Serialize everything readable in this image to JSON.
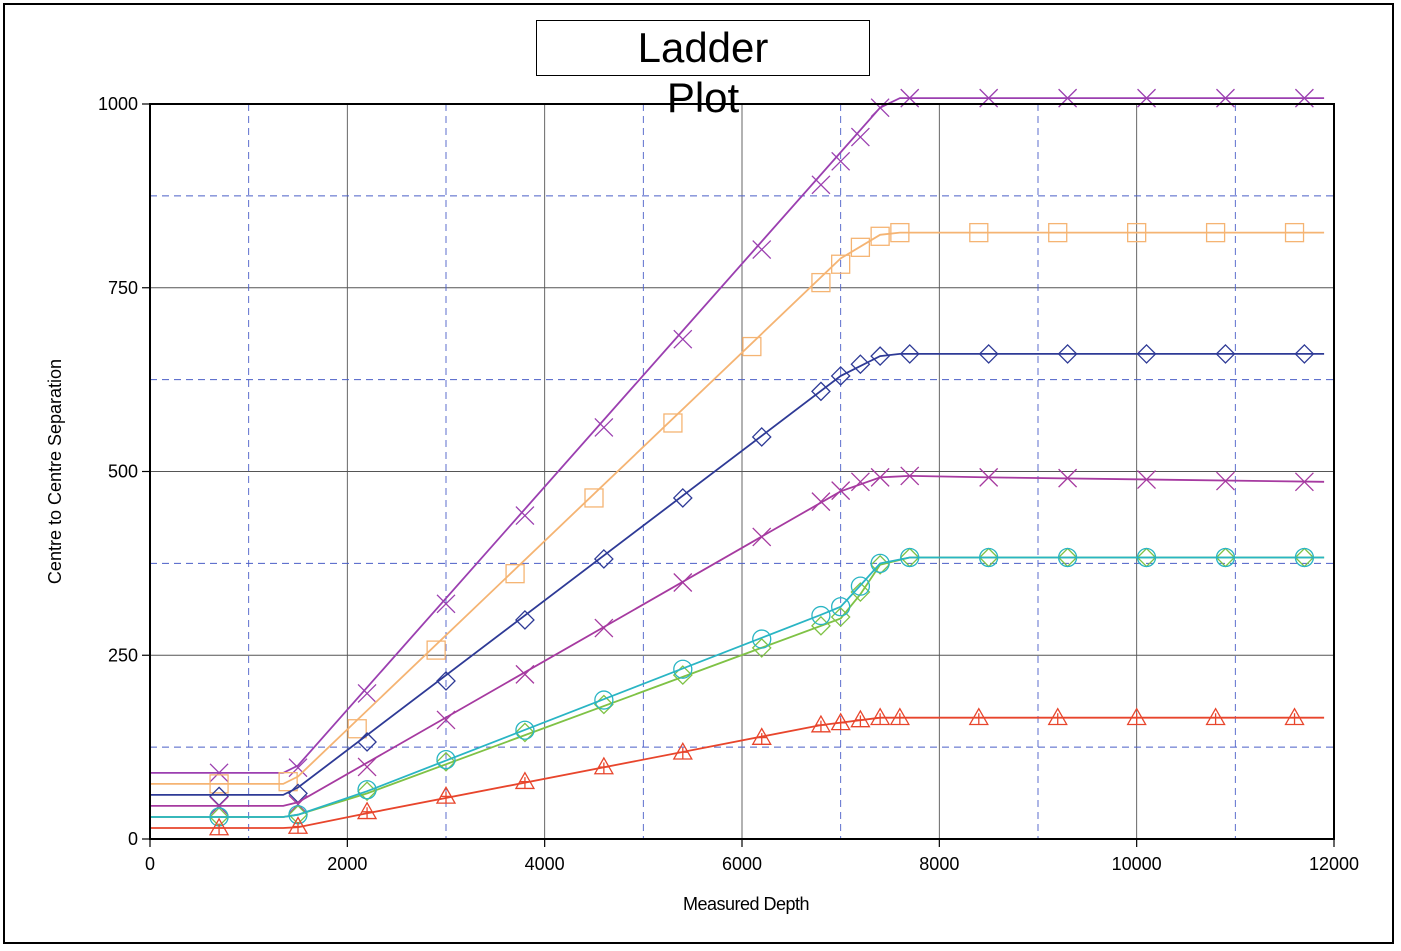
{
  "chart_data": {
    "type": "line",
    "title_lines": [
      "Ladder",
      "Plot"
    ],
    "xlabel": "Measured Depth",
    "ylabel": "Centre to Centre Separation",
    "xlim": [
      0,
      12000
    ],
    "ylim": [
      0,
      1000
    ],
    "x_ticks": [
      0,
      2000,
      4000,
      6000,
      8000,
      10000,
      12000
    ],
    "x_tick_labels": [
      "0",
      "2000",
      "4000",
      "6000",
      "8000",
      "10000",
      "12000"
    ],
    "y_ticks": [
      0,
      250,
      500,
      750,
      1000
    ],
    "y_tick_labels": [
      "0",
      "250",
      "500",
      "750",
      "1000"
    ],
    "grid": true,
    "series": [
      {
        "color": "#9b3fb0",
        "marker": "x",
        "line": [
          [
            0,
            90
          ],
          [
            1350,
            90
          ],
          [
            1500,
            100
          ],
          [
            7400,
            995
          ],
          [
            7600,
            1008
          ],
          [
            11900,
            1008
          ]
        ],
        "markers": [
          [
            700,
            90
          ],
          [
            1500,
            97
          ],
          [
            2200,
            198
          ],
          [
            3000,
            320
          ],
          [
            3800,
            440
          ],
          [
            4600,
            560
          ],
          [
            5400,
            680
          ],
          [
            6200,
            802
          ],
          [
            6800,
            890
          ],
          [
            7000,
            922
          ],
          [
            7200,
            955
          ],
          [
            7400,
            995
          ],
          [
            7700,
            1008
          ],
          [
            8500,
            1008
          ],
          [
            9300,
            1008
          ],
          [
            10100,
            1008
          ],
          [
            10900,
            1008
          ],
          [
            11700,
            1008
          ]
        ]
      },
      {
        "color": "#f5b473",
        "marker": "square",
        "line": [
          [
            0,
            75
          ],
          [
            1350,
            75
          ],
          [
            1500,
            85
          ],
          [
            7000,
            790
          ],
          [
            7400,
            822
          ],
          [
            7600,
            825
          ],
          [
            11900,
            825
          ]
        ],
        "markers": [
          [
            700,
            75
          ],
          [
            1400,
            78
          ],
          [
            2100,
            150
          ],
          [
            2900,
            257
          ],
          [
            3700,
            361
          ],
          [
            4500,
            464
          ],
          [
            5300,
            566
          ],
          [
            6100,
            670
          ],
          [
            6800,
            757
          ],
          [
            7000,
            782
          ],
          [
            7200,
            805
          ],
          [
            7400,
            820
          ],
          [
            7600,
            825
          ],
          [
            8400,
            825
          ],
          [
            9200,
            825
          ],
          [
            10000,
            825
          ],
          [
            10800,
            825
          ],
          [
            11600,
            825
          ]
        ]
      },
      {
        "color": "#2e3a96",
        "marker": "diamond",
        "line": [
          [
            0,
            60
          ],
          [
            1350,
            60
          ],
          [
            1500,
            70
          ],
          [
            7000,
            630
          ],
          [
            7400,
            657
          ],
          [
            7600,
            660
          ],
          [
            11900,
            660
          ]
        ],
        "markers": [
          [
            700,
            58
          ],
          [
            1500,
            62
          ],
          [
            2200,
            132
          ],
          [
            3000,
            215
          ],
          [
            3800,
            298
          ],
          [
            4600,
            381
          ],
          [
            5400,
            464
          ],
          [
            6200,
            547
          ],
          [
            6800,
            609
          ],
          [
            7000,
            630
          ],
          [
            7200,
            646
          ],
          [
            7400,
            657
          ],
          [
            7700,
            660
          ],
          [
            8500,
            660
          ],
          [
            9300,
            660
          ],
          [
            10100,
            660
          ],
          [
            10900,
            660
          ],
          [
            11700,
            660
          ]
        ]
      },
      {
        "color": "#a63aa0",
        "marker": "x",
        "line": [
          [
            0,
            45
          ],
          [
            1350,
            45
          ],
          [
            1500,
            50
          ],
          [
            7000,
            473
          ],
          [
            7400,
            492
          ],
          [
            7700,
            494
          ],
          [
            8500,
            492
          ],
          [
            11900,
            486
          ]
        ],
        "markers": [
          [
            700,
            45
          ],
          [
            1500,
            47
          ],
          [
            2200,
            98
          ],
          [
            3000,
            162
          ],
          [
            3800,
            224
          ],
          [
            4600,
            287
          ],
          [
            5400,
            349
          ],
          [
            6200,
            411
          ],
          [
            6800,
            459
          ],
          [
            7000,
            474
          ],
          [
            7200,
            486
          ],
          [
            7400,
            492
          ],
          [
            7700,
            494
          ],
          [
            8500,
            492
          ],
          [
            9300,
            491
          ],
          [
            10100,
            489
          ],
          [
            10900,
            487
          ],
          [
            11700,
            486
          ]
        ]
      },
      {
        "color": "#7fc245",
        "marker": "diamond",
        "line": [
          [
            0,
            30
          ],
          [
            1350,
            30
          ],
          [
            1500,
            33
          ],
          [
            2200,
            62
          ],
          [
            6800,
            290
          ],
          [
            7000,
            300
          ],
          [
            7200,
            333
          ],
          [
            7400,
            373
          ],
          [
            7700,
            383
          ],
          [
            11900,
            383
          ]
        ],
        "markers": [
          [
            700,
            30
          ],
          [
            1500,
            33
          ],
          [
            2200,
            65
          ],
          [
            3000,
            105
          ],
          [
            3800,
            145
          ],
          [
            4600,
            183
          ],
          [
            5400,
            223
          ],
          [
            6200,
            260
          ],
          [
            6800,
            290
          ],
          [
            7000,
            302
          ],
          [
            7200,
            336
          ],
          [
            7400,
            373
          ],
          [
            7700,
            383
          ],
          [
            8500,
            383
          ],
          [
            9300,
            383
          ],
          [
            10100,
            383
          ],
          [
            10900,
            383
          ],
          [
            11700,
            383
          ]
        ]
      },
      {
        "color": "#29b5c4",
        "marker": "circle",
        "line": [
          [
            0,
            30
          ],
          [
            1350,
            30
          ],
          [
            1500,
            33
          ],
          [
            2200,
            65
          ],
          [
            6800,
            305
          ],
          [
            7000,
            316
          ],
          [
            7200,
            345
          ],
          [
            7400,
            375
          ],
          [
            7700,
            383
          ],
          [
            11900,
            383
          ]
        ],
        "markers": [
          [
            700,
            30
          ],
          [
            1500,
            33
          ],
          [
            2200,
            67
          ],
          [
            3000,
            108
          ],
          [
            3800,
            148
          ],
          [
            4600,
            189
          ],
          [
            5400,
            231
          ],
          [
            6200,
            272
          ],
          [
            6800,
            304
          ],
          [
            7000,
            316
          ],
          [
            7200,
            344
          ],
          [
            7400,
            375
          ],
          [
            7700,
            383
          ],
          [
            8500,
            383
          ],
          [
            9300,
            383
          ],
          [
            10100,
            383
          ],
          [
            10900,
            383
          ],
          [
            11700,
            383
          ]
        ]
      },
      {
        "color": "#e8452c",
        "marker": "triangle",
        "line": [
          [
            0,
            15
          ],
          [
            1350,
            15
          ],
          [
            1500,
            16
          ],
          [
            2200,
            35
          ],
          [
            6800,
            155
          ],
          [
            7400,
            165
          ],
          [
            11900,
            165
          ]
        ],
        "markers": [
          [
            700,
            15
          ],
          [
            1500,
            17
          ],
          [
            2200,
            37
          ],
          [
            3000,
            58
          ],
          [
            3800,
            78
          ],
          [
            4600,
            98
          ],
          [
            5400,
            118
          ],
          [
            6200,
            138
          ],
          [
            6800,
            155
          ],
          [
            7000,
            158
          ],
          [
            7200,
            162
          ],
          [
            7400,
            165
          ],
          [
            7600,
            165
          ],
          [
            8400,
            165
          ],
          [
            9200,
            165
          ],
          [
            10000,
            165
          ],
          [
            10800,
            165
          ],
          [
            11600,
            165
          ]
        ]
      }
    ]
  }
}
